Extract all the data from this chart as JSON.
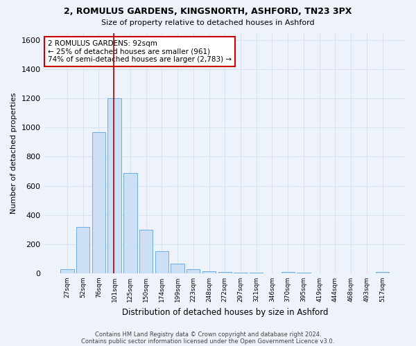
{
  "title1": "2, ROMULUS GARDENS, KINGSNORTH, ASHFORD, TN23 3PX",
  "title2": "Size of property relative to detached houses in Ashford",
  "xlabel": "Distribution of detached houses by size in Ashford",
  "ylabel": "Number of detached properties",
  "bar_color": "#ccdff5",
  "bar_edge_color": "#6aaee8",
  "categories": [
    "27sqm",
    "52sqm",
    "76sqm",
    "101sqm",
    "125sqm",
    "150sqm",
    "174sqm",
    "199sqm",
    "223sqm",
    "248sqm",
    "272sqm",
    "297sqm",
    "321sqm",
    "346sqm",
    "370sqm",
    "395sqm",
    "419sqm",
    "444sqm",
    "468sqm",
    "493sqm",
    "517sqm"
  ],
  "values": [
    30,
    320,
    970,
    1200,
    690,
    300,
    150,
    65,
    28,
    15,
    10,
    5,
    5,
    0,
    8,
    5,
    0,
    0,
    0,
    0,
    8
  ],
  "ylim": [
    0,
    1650
  ],
  "yticks": [
    0,
    200,
    400,
    600,
    800,
    1000,
    1200,
    1400,
    1600
  ],
  "vline_x": 2.95,
  "vline_color": "#aa0000",
  "annotation_text": "2 ROMULUS GARDENS: 92sqm\n← 25% of detached houses are smaller (961)\n74% of semi-detached houses are larger (2,783) →",
  "annotation_box_color": "white",
  "annotation_box_edge": "#cc0000",
  "footer1": "Contains HM Land Registry data © Crown copyright and database right 2024.",
  "footer2": "Contains public sector information licensed under the Open Government Licence v3.0.",
  "bg_color": "#eef2fa",
  "plot_bg_color": "#eef2fa",
  "grid_color": "#d8e4f0"
}
